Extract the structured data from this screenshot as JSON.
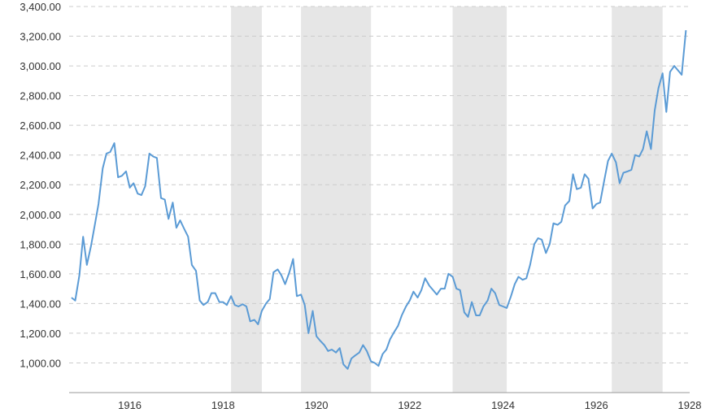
{
  "chart_data": {
    "type": "line",
    "title": "",
    "xlabel": "",
    "ylabel": "",
    "x_range": [
      1914.7,
      1928.0
    ],
    "ylim": [
      800,
      3400
    ],
    "y_ticks": [
      1000,
      1200,
      1400,
      1600,
      1800,
      2000,
      2200,
      2400,
      2600,
      2800,
      3000,
      3200,
      3400
    ],
    "y_tick_labels": [
      "1,000.00",
      "1,200.00",
      "1,400.00",
      "1,600.00",
      "1,800.00",
      "2,000.00",
      "2,200.00",
      "2,400.00",
      "2,600.00",
      "2,800.00",
      "3,000.00",
      "3,200.00",
      "3,400.00"
    ],
    "x_ticks": [
      1916,
      1918,
      1920,
      1922,
      1924,
      1926,
      1928
    ],
    "x_tick_labels": [
      "1916",
      "1918",
      "1920",
      "1922",
      "1924",
      "1926",
      "1928"
    ],
    "grid": true,
    "recessions": [
      [
        1918.17,
        1918.83
      ],
      [
        1919.67,
        1921.17
      ],
      [
        1922.92,
        1924.08
      ],
      [
        1926.33,
        1927.42
      ]
    ],
    "series": [
      {
        "color": "#5b9bd5",
        "points": [
          [
            1914.75,
            1440
          ],
          [
            1914.83,
            1420
          ],
          [
            1914.92,
            1590
          ],
          [
            1915.0,
            1850
          ],
          [
            1915.08,
            1660
          ],
          [
            1915.17,
            1790
          ],
          [
            1915.25,
            1930
          ],
          [
            1915.33,
            2070
          ],
          [
            1915.42,
            2310
          ],
          [
            1915.5,
            2410
          ],
          [
            1915.58,
            2420
          ],
          [
            1915.67,
            2480
          ],
          [
            1915.75,
            2250
          ],
          [
            1915.83,
            2260
          ],
          [
            1915.92,
            2290
          ],
          [
            1916.0,
            2180
          ],
          [
            1916.08,
            2210
          ],
          [
            1916.17,
            2140
          ],
          [
            1916.25,
            2130
          ],
          [
            1916.33,
            2190
          ],
          [
            1916.42,
            2410
          ],
          [
            1916.5,
            2390
          ],
          [
            1916.58,
            2380
          ],
          [
            1916.67,
            2110
          ],
          [
            1916.75,
            2100
          ],
          [
            1916.83,
            1970
          ],
          [
            1916.92,
            2080
          ],
          [
            1917.0,
            1910
          ],
          [
            1917.08,
            1960
          ],
          [
            1917.17,
            1900
          ],
          [
            1917.25,
            1850
          ],
          [
            1917.33,
            1660
          ],
          [
            1917.42,
            1620
          ],
          [
            1917.5,
            1420
          ],
          [
            1917.58,
            1390
          ],
          [
            1917.67,
            1410
          ],
          [
            1917.75,
            1470
          ],
          [
            1917.83,
            1470
          ],
          [
            1917.92,
            1410
          ],
          [
            1918.0,
            1410
          ],
          [
            1918.08,
            1390
          ],
          [
            1918.17,
            1450
          ],
          [
            1918.25,
            1390
          ],
          [
            1918.33,
            1380
          ],
          [
            1918.42,
            1395
          ],
          [
            1918.5,
            1380
          ],
          [
            1918.58,
            1280
          ],
          [
            1918.67,
            1290
          ],
          [
            1918.75,
            1260
          ],
          [
            1918.83,
            1350
          ],
          [
            1918.92,
            1400
          ],
          [
            1919.0,
            1430
          ],
          [
            1919.08,
            1610
          ],
          [
            1919.17,
            1630
          ],
          [
            1919.25,
            1590
          ],
          [
            1919.33,
            1530
          ],
          [
            1919.42,
            1610
          ],
          [
            1919.5,
            1700
          ],
          [
            1919.58,
            1450
          ],
          [
            1919.67,
            1460
          ],
          [
            1919.75,
            1390
          ],
          [
            1919.83,
            1200
          ],
          [
            1919.92,
            1350
          ],
          [
            1920.0,
            1180
          ],
          [
            1920.08,
            1150
          ],
          [
            1920.17,
            1120
          ],
          [
            1920.25,
            1080
          ],
          [
            1920.33,
            1090
          ],
          [
            1920.42,
            1070
          ],
          [
            1920.5,
            1100
          ],
          [
            1920.58,
            990
          ],
          [
            1920.67,
            960
          ],
          [
            1920.75,
            1030
          ],
          [
            1920.83,
            1050
          ],
          [
            1920.92,
            1070
          ],
          [
            1921.0,
            1120
          ],
          [
            1921.08,
            1080
          ],
          [
            1921.17,
            1010
          ],
          [
            1921.25,
            1000
          ],
          [
            1921.33,
            980
          ],
          [
            1921.42,
            1060
          ],
          [
            1921.5,
            1090
          ],
          [
            1921.58,
            1160
          ],
          [
            1921.67,
            1210
          ],
          [
            1921.75,
            1250
          ],
          [
            1921.83,
            1320
          ],
          [
            1921.92,
            1380
          ],
          [
            1922.0,
            1420
          ],
          [
            1922.08,
            1480
          ],
          [
            1922.17,
            1440
          ],
          [
            1922.25,
            1490
          ],
          [
            1922.33,
            1570
          ],
          [
            1922.42,
            1520
          ],
          [
            1922.5,
            1490
          ],
          [
            1922.58,
            1460
          ],
          [
            1922.67,
            1500
          ],
          [
            1922.75,
            1500
          ],
          [
            1922.83,
            1600
          ],
          [
            1922.92,
            1580
          ],
          [
            1923.0,
            1500
          ],
          [
            1923.08,
            1490
          ],
          [
            1923.17,
            1340
          ],
          [
            1923.25,
            1310
          ],
          [
            1923.33,
            1410
          ],
          [
            1923.42,
            1320
          ],
          [
            1923.5,
            1320
          ],
          [
            1923.58,
            1380
          ],
          [
            1923.67,
            1420
          ],
          [
            1923.75,
            1500
          ],
          [
            1923.83,
            1470
          ],
          [
            1923.92,
            1390
          ],
          [
            1924.0,
            1380
          ],
          [
            1924.08,
            1370
          ],
          [
            1924.17,
            1450
          ],
          [
            1924.25,
            1530
          ],
          [
            1924.33,
            1580
          ],
          [
            1924.42,
            1560
          ],
          [
            1924.5,
            1570
          ],
          [
            1924.58,
            1660
          ],
          [
            1924.67,
            1800
          ],
          [
            1924.75,
            1840
          ],
          [
            1924.83,
            1830
          ],
          [
            1924.92,
            1740
          ],
          [
            1925.0,
            1800
          ],
          [
            1925.08,
            1940
          ],
          [
            1925.17,
            1930
          ],
          [
            1925.25,
            1950
          ],
          [
            1925.33,
            2060
          ],
          [
            1925.42,
            2090
          ],
          [
            1925.5,
            2270
          ],
          [
            1925.58,
            2170
          ],
          [
            1925.67,
            2180
          ],
          [
            1925.75,
            2270
          ],
          [
            1925.83,
            2240
          ],
          [
            1925.92,
            2040
          ],
          [
            1926.0,
            2070
          ],
          [
            1926.08,
            2080
          ],
          [
            1926.17,
            2230
          ],
          [
            1926.25,
            2360
          ],
          [
            1926.33,
            2410
          ],
          [
            1926.42,
            2350
          ],
          [
            1926.5,
            2210
          ],
          [
            1926.58,
            2280
          ],
          [
            1926.67,
            2290
          ],
          [
            1926.75,
            2300
          ],
          [
            1926.83,
            2400
          ],
          [
            1926.92,
            2390
          ],
          [
            1927.0,
            2440
          ],
          [
            1927.08,
            2560
          ],
          [
            1927.17,
            2440
          ],
          [
            1927.25,
            2700
          ],
          [
            1927.33,
            2850
          ],
          [
            1927.42,
            2950
          ],
          [
            1927.5,
            2690
          ],
          [
            1927.58,
            2960
          ],
          [
            1927.67,
            3000
          ],
          [
            1927.75,
            2970
          ],
          [
            1927.83,
            2940
          ],
          [
            1927.92,
            3240
          ]
        ]
      }
    ]
  }
}
